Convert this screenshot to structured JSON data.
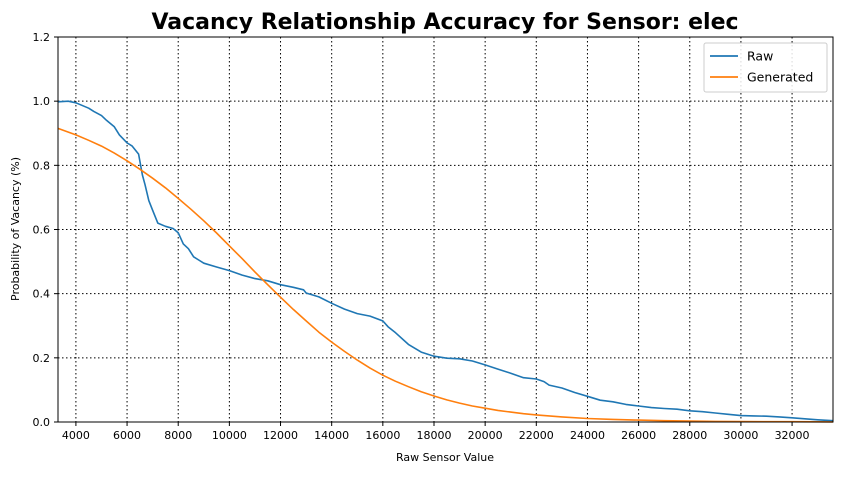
{
  "chart_data": {
    "type": "line",
    "title": "Vacancy Relationship Accuracy for Sensor: elec",
    "xlabel": "Raw Sensor Value",
    "ylabel": "Probability of Vacancy (%)",
    "xlim": [
      3300,
      33600
    ],
    "ylim": [
      0,
      1.2
    ],
    "xticks": [
      4000,
      6000,
      8000,
      10000,
      12000,
      14000,
      16000,
      18000,
      20000,
      22000,
      24000,
      26000,
      28000,
      30000,
      32000
    ],
    "yticks": [
      0.0,
      0.2,
      0.4,
      0.6,
      0.8,
      1.0,
      1.2
    ],
    "grid": true,
    "legend_position": "top-right",
    "series": [
      {
        "name": "Raw",
        "color": "#1f77b4",
        "x": [
          3300,
          3700,
          4000,
          4500,
          4700,
          5000,
          5200,
          5500,
          5700,
          6000,
          6200,
          6450,
          6600,
          6700,
          6850,
          7000,
          7200,
          7500,
          7800,
          8000,
          8200,
          8400,
          8600,
          8800,
          9000,
          9500,
          10000,
          10500,
          11000,
          11500,
          12000,
          12500,
          12900,
          13000,
          13500,
          14000,
          14500,
          15000,
          15500,
          16000,
          16200,
          16500,
          17000,
          17500,
          18000,
          18500,
          19000,
          19500,
          20000,
          20500,
          21000,
          21500,
          22000,
          22300,
          22500,
          23000,
          23500,
          24000,
          24500,
          25000,
          25500,
          26000,
          26500,
          27000,
          27500,
          28000,
          28500,
          29000,
          29500,
          30000,
          30500,
          31000,
          31500,
          32000,
          32500,
          33000,
          33600
        ],
        "y": [
          0.998,
          1.0,
          0.995,
          0.978,
          0.968,
          0.955,
          0.94,
          0.92,
          0.895,
          0.87,
          0.86,
          0.835,
          0.77,
          0.74,
          0.69,
          0.66,
          0.62,
          0.61,
          0.603,
          0.59,
          0.555,
          0.54,
          0.515,
          0.505,
          0.495,
          0.483,
          0.472,
          0.458,
          0.447,
          0.44,
          0.428,
          0.42,
          0.412,
          0.402,
          0.39,
          0.37,
          0.352,
          0.338,
          0.33,
          0.315,
          0.297,
          0.278,
          0.242,
          0.218,
          0.205,
          0.199,
          0.197,
          0.19,
          0.178,
          0.165,
          0.152,
          0.138,
          0.134,
          0.126,
          0.115,
          0.106,
          0.092,
          0.08,
          0.068,
          0.063,
          0.055,
          0.05,
          0.045,
          0.042,
          0.04,
          0.035,
          0.032,
          0.028,
          0.024,
          0.02,
          0.019,
          0.018,
          0.016,
          0.013,
          0.01,
          0.007,
          0.004
        ]
      },
      {
        "name": "Generated",
        "color": "#ff7f0e",
        "x": [
          3300,
          4000,
          4500,
          5000,
          5500,
          6000,
          6500,
          7000,
          7500,
          8000,
          8500,
          9000,
          9500,
          10000,
          10500,
          11000,
          11500,
          12000,
          12500,
          13000,
          13500,
          14000,
          14500,
          15000,
          15500,
          16000,
          16500,
          17000,
          17500,
          18000,
          18500,
          19000,
          19500,
          20000,
          20500,
          21000,
          21500,
          22000,
          23000,
          24000,
          25000,
          26000,
          27000,
          28000,
          29000,
          30000,
          31000,
          32000,
          33000,
          33600
        ],
        "y": [
          0.915,
          0.895,
          0.878,
          0.86,
          0.838,
          0.814,
          0.788,
          0.76,
          0.73,
          0.697,
          0.663,
          0.627,
          0.589,
          0.549,
          0.509,
          0.468,
          0.428,
          0.389,
          0.351,
          0.315,
          0.28,
          0.249,
          0.22,
          0.193,
          0.168,
          0.146,
          0.127,
          0.11,
          0.094,
          0.081,
          0.069,
          0.059,
          0.05,
          0.043,
          0.036,
          0.031,
          0.026,
          0.022,
          0.016,
          0.011,
          0.008,
          0.006,
          0.004,
          0.003,
          0.002,
          0.0015,
          0.001,
          0.0008,
          0.0005,
          0.0004
        ]
      }
    ]
  }
}
